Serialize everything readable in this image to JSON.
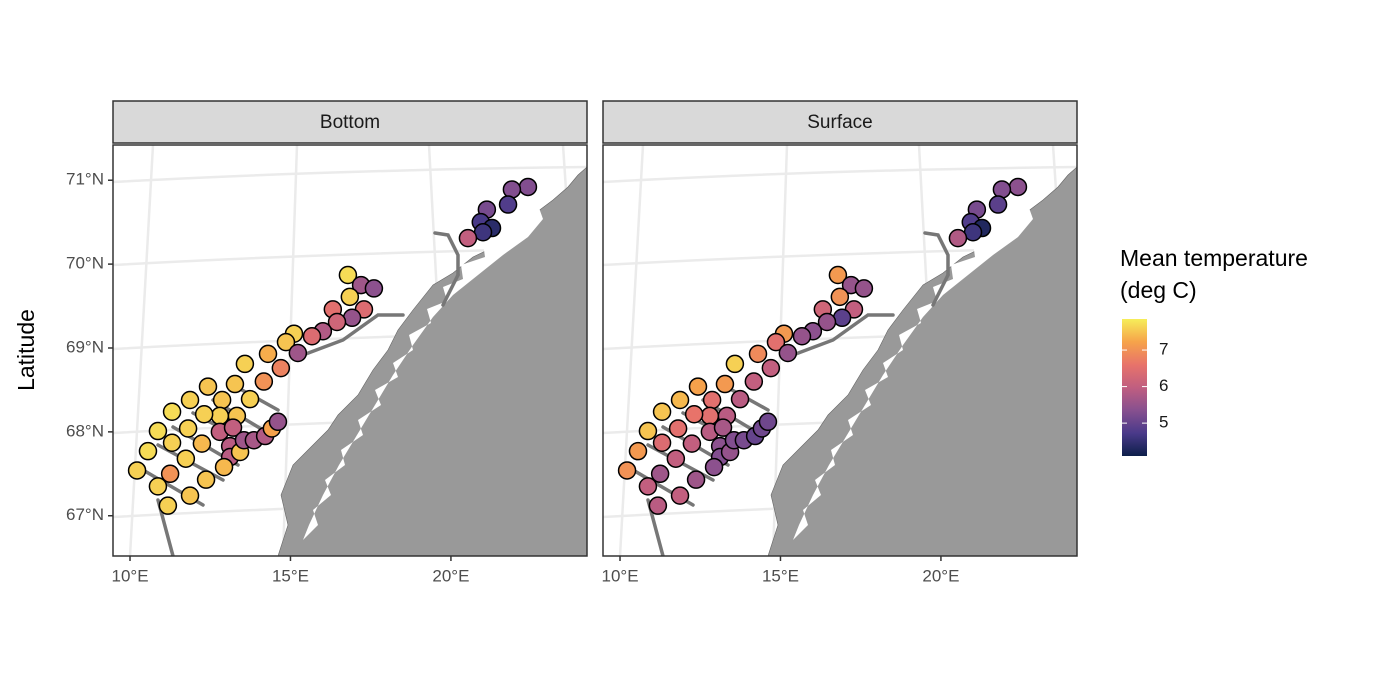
{
  "chart_data": {
    "type": "map",
    "x": [
      22.4,
      21.9,
      21.12,
      21.78,
      20.93,
      21.28,
      21.0,
      20.53,
      16.79,
      17.2,
      17.6,
      16.85,
      17.29,
      16.32,
      16.92,
      16.45,
      16.01,
      15.67,
      15.11,
      14.86,
      15.23,
      14.7,
      14.3,
      13.58,
      14.17,
      13.74,
      13.27,
      12.87,
      12.43,
      13.33,
      12.8,
      12.31,
      11.87,
      11.31,
      11.81,
      10.87,
      11.31,
      11.74,
      12.24,
      12.8,
      13.21,
      13.12,
      13.12,
      13.43,
      13.55,
      13.86,
      14.21,
      14.42,
      14.61,
      10.56,
      10.22,
      10.87,
      11.25,
      11.18,
      11.87,
      12.37,
      12.93
    ],
    "y": [
      70.92,
      70.89,
      70.65,
      70.71,
      70.5,
      70.43,
      70.38,
      70.31,
      69.87,
      69.75,
      69.71,
      69.61,
      69.46,
      69.46,
      69.36,
      69.31,
      69.2,
      69.14,
      69.17,
      69.07,
      68.94,
      68.76,
      68.93,
      68.81,
      68.6,
      68.39,
      68.57,
      68.38,
      68.54,
      68.19,
      68.19,
      68.21,
      68.38,
      68.24,
      68.04,
      68.01,
      67.87,
      67.68,
      67.86,
      68.0,
      68.05,
      67.83,
      67.7,
      67.76,
      67.9,
      67.9,
      67.95,
      68.04,
      68.12,
      67.77,
      67.54,
      67.35,
      67.5,
      67.12,
      67.24,
      67.43,
      67.58
    ],
    "series": [
      {
        "name": "Bottom",
        "values": [
          5.3,
          5.3,
          5.2,
          4.8,
          4.7,
          4.4,
          4.6,
          6.0,
          7.7,
          5.6,
          5.4,
          7.6,
          6.4,
          6.5,
          5.5,
          6.2,
          5.8,
          6.4,
          7.6,
          7.5,
          5.6,
          6.8,
          7.3,
          7.6,
          7.0,
          7.6,
          7.5,
          7.5,
          7.5,
          7.5,
          7.6,
          7.6,
          7.6,
          7.7,
          7.6,
          7.7,
          7.6,
          7.6,
          7.4,
          6.0,
          6.0,
          5.9,
          5.9,
          7.5,
          5.6,
          5.7,
          5.8,
          7.2,
          5.5,
          7.7,
          7.6,
          7.6,
          7.0,
          7.6,
          7.5,
          7.5,
          7.4
        ]
      },
      {
        "name": "Surface",
        "values": [
          5.4,
          5.3,
          5.2,
          4.9,
          4.8,
          4.3,
          4.6,
          5.8,
          7.1,
          5.5,
          5.5,
          7.0,
          6.0,
          6.2,
          4.9,
          5.5,
          5.4,
          5.5,
          7.1,
          6.5,
          5.5,
          6.0,
          6.9,
          7.6,
          6.0,
          5.9,
          7.1,
          6.5,
          7.2,
          5.9,
          6.5,
          6.6,
          7.4,
          7.5,
          6.5,
          7.5,
          6.4,
          6.0,
          6.0,
          5.9,
          5.7,
          5.4,
          5.3,
          5.5,
          5.3,
          5.2,
          5.0,
          5.1,
          5.1,
          7.1,
          7.0,
          6.0,
          5.6,
          5.9,
          6.0,
          5.6,
          5.4
        ]
      }
    ],
    "xlim": [
      9.47,
      24.24
    ],
    "ylim": [
      66.52,
      71.42
    ],
    "xticks": [
      {
        "value": 10,
        "label": "10°E"
      },
      {
        "value": 15,
        "label": "15°E"
      },
      {
        "value": 20,
        "label": "20°E"
      }
    ],
    "yticks": [
      {
        "value": 67,
        "label": "67°N"
      },
      {
        "value": 68,
        "label": "68°N"
      },
      {
        "value": 69,
        "label": "69°N"
      },
      {
        "value": 70,
        "label": "70°N"
      },
      {
        "value": 71,
        "label": "71°N"
      }
    ],
    "ylabel": "Latitude",
    "legend_title": [
      "Mean temperature",
      "(deg C)"
    ],
    "colorbar": {
      "lim": [
        4.1,
        7.85
      ],
      "ticks": [
        5,
        6,
        7
      ],
      "colors": [
        "#0d1f4a",
        "#4a3a8a",
        "#87508f",
        "#c05e80",
        "#e8736a",
        "#f6a34a",
        "#f6ee5a"
      ]
    }
  }
}
